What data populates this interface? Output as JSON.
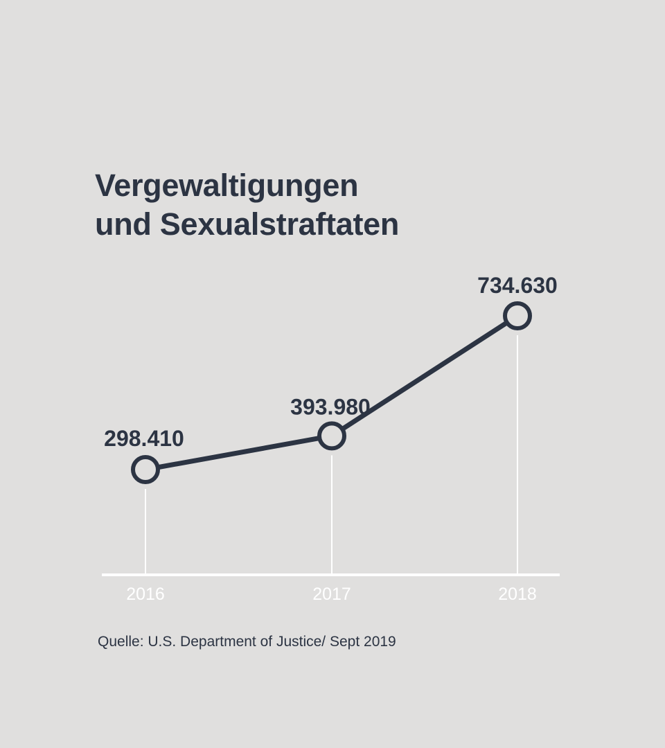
{
  "title": {
    "line1": "Vergewaltigungen",
    "line2": "und Sexualstraftaten"
  },
  "chart_data": {
    "type": "line",
    "title": "Vergewaltigungen und Sexualstraftaten",
    "categories": [
      "2016",
      "2017",
      "2018"
    ],
    "values": [
      298410,
      393980,
      734630
    ],
    "data_labels": [
      "298.410",
      "393.980",
      "734.630"
    ],
    "xlabel": "",
    "ylabel": "",
    "ylim": [
      0,
      734630
    ],
    "grid": false,
    "legend": "none"
  },
  "source": "Quelle:  U.S. Department of Justice/ Sept 2019",
  "colors": {
    "background": "#e0dfde",
    "ink": "#2c3443",
    "axis": "#ffffff"
  }
}
